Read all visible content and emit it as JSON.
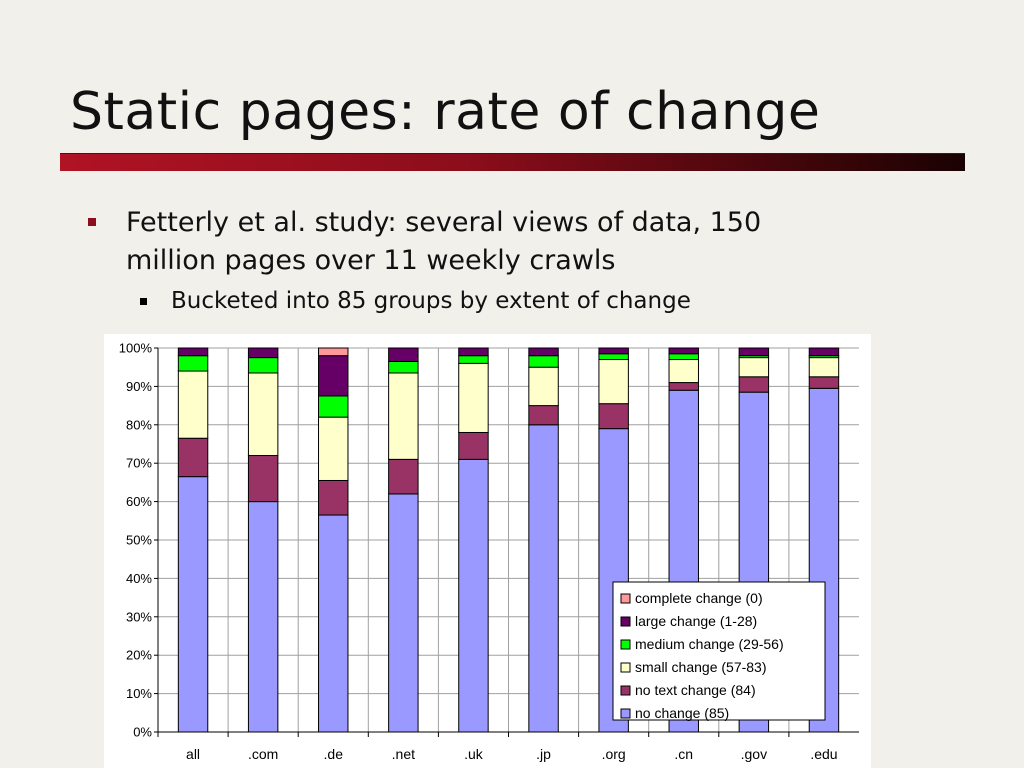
{
  "slide": {
    "title": "Static pages: rate of change",
    "bullets": [
      {
        "text": "Fetterly et al. study: several views of data, 150 million pages over 11 weekly crawls"
      },
      {
        "text": "Bucketed into 85 groups by extent of change"
      }
    ]
  },
  "chart_data": {
    "type": "bar",
    "stacked": true,
    "percent": true,
    "categories": [
      "all",
      ".com",
      ".de",
      ".net",
      ".uk",
      ".jp",
      ".org",
      ".cn",
      ".gov",
      ".edu"
    ],
    "yticks": [
      "0%",
      "10%",
      "20%",
      "30%",
      "40%",
      "50%",
      "60%",
      "70%",
      "80%",
      "90%",
      "100%"
    ],
    "ylim": [
      0,
      100
    ],
    "grid": true,
    "legend_position": "bottom-right",
    "series": [
      {
        "name": "no change (85)",
        "color": "#9999ff",
        "values": [
          66.5,
          60,
          56.5,
          62,
          71,
          80,
          79,
          89,
          88.5,
          89.5
        ]
      },
      {
        "name": "no text change (84)",
        "color": "#993366",
        "values": [
          10,
          12,
          9,
          9,
          7,
          5,
          6.5,
          2,
          4,
          3
        ]
      },
      {
        "name": "small change (57-83)",
        "color": "#ffffcc",
        "values": [
          17.5,
          21.5,
          16.5,
          22.5,
          18,
          10,
          11.5,
          6,
          5,
          5
        ]
      },
      {
        "name": "medium change (29-56)",
        "color": "#00ff00",
        "values": [
          4,
          4,
          5.5,
          3,
          2,
          3,
          1.5,
          1.5,
          0.5,
          0.5
        ]
      },
      {
        "name": "large change (1-28)",
        "color": "#660066",
        "values": [
          2,
          2.5,
          10.5,
          3.5,
          2,
          2,
          1.5,
          1.5,
          2,
          2
        ]
      },
      {
        "name": "complete change (0)",
        "color": "#ff9999",
        "values": [
          0,
          0,
          2,
          0,
          0,
          0,
          0,
          0,
          0,
          0
        ]
      }
    ]
  }
}
